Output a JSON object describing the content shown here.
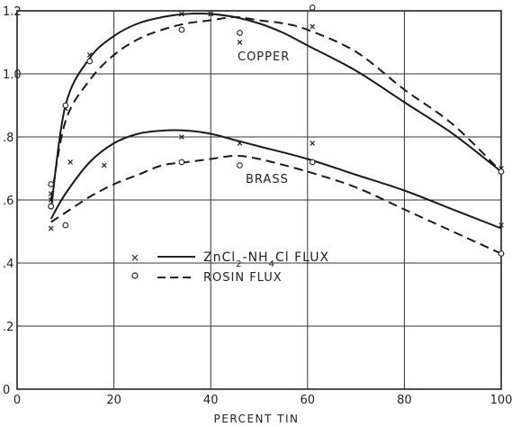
{
  "chart_data": {
    "type": "line",
    "xlabel": "PERCENT TIN",
    "ylabel": "",
    "xlim": [
      0,
      100
    ],
    "ylim": [
      0,
      1.2
    ],
    "x_ticks": [
      {
        "value": 0,
        "label": "0"
      },
      {
        "value": 20,
        "label": "20"
      },
      {
        "value": 40,
        "label": "40"
      },
      {
        "value": 60,
        "label": "60"
      },
      {
        "value": 80,
        "label": "80"
      },
      {
        "value": 100,
        "label": "100"
      }
    ],
    "y_ticks": [
      {
        "value": 0,
        "label": "0"
      },
      {
        "value": 0.2,
        "label": ".2"
      },
      {
        "value": 0.4,
        "label": ".4"
      },
      {
        "value": 0.6,
        "label": ".6"
      },
      {
        "value": 0.8,
        "label": ".8"
      },
      {
        "value": 1.0,
        "label": "1.0"
      },
      {
        "value": 1.2,
        "label": "1.2"
      }
    ],
    "grid": true,
    "annotations": {
      "copper": "COPPER",
      "brass": "BRASS"
    },
    "legend": {
      "placement": "center-left",
      "items": [
        {
          "marker": "×",
          "line": "solid",
          "label_main": "ZnCl",
          "sub1": "2",
          "label_mid": "-NH",
          "sub2": "4",
          "label_end": "Cl FLUX"
        },
        {
          "marker": "o",
          "line": "dashed",
          "label": "ROSIN FLUX"
        }
      ]
    },
    "series": [
      {
        "id": "copper-zncl2",
        "line": "solid",
        "curve": [
          [
            7,
            0.57
          ],
          [
            10,
            0.9
          ],
          [
            15,
            1.05
          ],
          [
            20,
            1.12
          ],
          [
            25,
            1.16
          ],
          [
            30,
            1.18
          ],
          [
            35,
            1.19
          ],
          [
            40,
            1.19
          ],
          [
            45,
            1.18
          ],
          [
            50,
            1.16
          ],
          [
            55,
            1.13
          ],
          [
            60,
            1.09
          ],
          [
            70,
            1.01
          ],
          [
            80,
            0.91
          ],
          [
            90,
            0.81
          ],
          [
            100,
            0.69
          ]
        ],
        "points": [
          [
            7,
            0.62
          ],
          [
            7,
            0.6
          ],
          [
            10,
            0.89
          ],
          [
            15,
            1.06
          ],
          [
            34,
            1.19
          ],
          [
            40,
            1.19
          ],
          [
            46,
            1.1
          ],
          [
            61,
            1.15
          ],
          [
            100,
            0.7
          ]
        ]
      },
      {
        "id": "copper-rosin",
        "line": "dashed",
        "curve": [
          [
            7,
            0.6
          ],
          [
            10,
            0.85
          ],
          [
            15,
            0.98
          ],
          [
            20,
            1.06
          ],
          [
            25,
            1.11
          ],
          [
            30,
            1.14
          ],
          [
            35,
            1.16
          ],
          [
            40,
            1.17
          ],
          [
            45,
            1.18
          ],
          [
            50,
            1.17
          ],
          [
            55,
            1.16
          ],
          [
            60,
            1.14
          ],
          [
            70,
            1.07
          ],
          [
            80,
            0.95
          ],
          [
            90,
            0.84
          ],
          [
            100,
            0.69
          ]
        ],
        "points": [
          [
            7,
            0.58
          ],
          [
            10,
            0.9
          ],
          [
            15,
            1.04
          ],
          [
            34,
            1.14
          ],
          [
            46,
            1.13
          ],
          [
            61,
            1.21
          ],
          [
            100,
            0.69
          ]
        ]
      },
      {
        "id": "brass-zncl2",
        "line": "solid",
        "curve": [
          [
            7,
            0.54
          ],
          [
            10,
            0.62
          ],
          [
            15,
            0.72
          ],
          [
            20,
            0.78
          ],
          [
            25,
            0.81
          ],
          [
            30,
            0.82
          ],
          [
            35,
            0.82
          ],
          [
            40,
            0.81
          ],
          [
            45,
            0.79
          ],
          [
            50,
            0.77
          ],
          [
            60,
            0.73
          ],
          [
            70,
            0.68
          ],
          [
            80,
            0.63
          ],
          [
            90,
            0.57
          ],
          [
            100,
            0.51
          ]
        ],
        "points": [
          [
            7,
            0.51
          ],
          [
            11,
            0.72
          ],
          [
            18,
            0.71
          ],
          [
            34,
            0.8
          ],
          [
            46,
            0.78
          ],
          [
            61,
            0.78
          ],
          [
            100,
            0.52
          ]
        ]
      },
      {
        "id": "brass-rosin",
        "line": "dashed",
        "curve": [
          [
            7,
            0.53
          ],
          [
            10,
            0.56
          ],
          [
            15,
            0.61
          ],
          [
            20,
            0.65
          ],
          [
            25,
            0.68
          ],
          [
            30,
            0.71
          ],
          [
            35,
            0.72
          ],
          [
            40,
            0.73
          ],
          [
            45,
            0.74
          ],
          [
            50,
            0.73
          ],
          [
            60,
            0.69
          ],
          [
            70,
            0.64
          ],
          [
            80,
            0.57
          ],
          [
            90,
            0.5
          ],
          [
            100,
            0.43
          ]
        ],
        "points": [
          [
            7,
            0.65
          ],
          [
            7,
            0.58
          ],
          [
            10,
            0.52
          ],
          [
            34,
            0.72
          ],
          [
            46,
            0.71
          ],
          [
            61,
            0.72
          ],
          [
            100,
            0.43
          ]
        ]
      }
    ]
  }
}
